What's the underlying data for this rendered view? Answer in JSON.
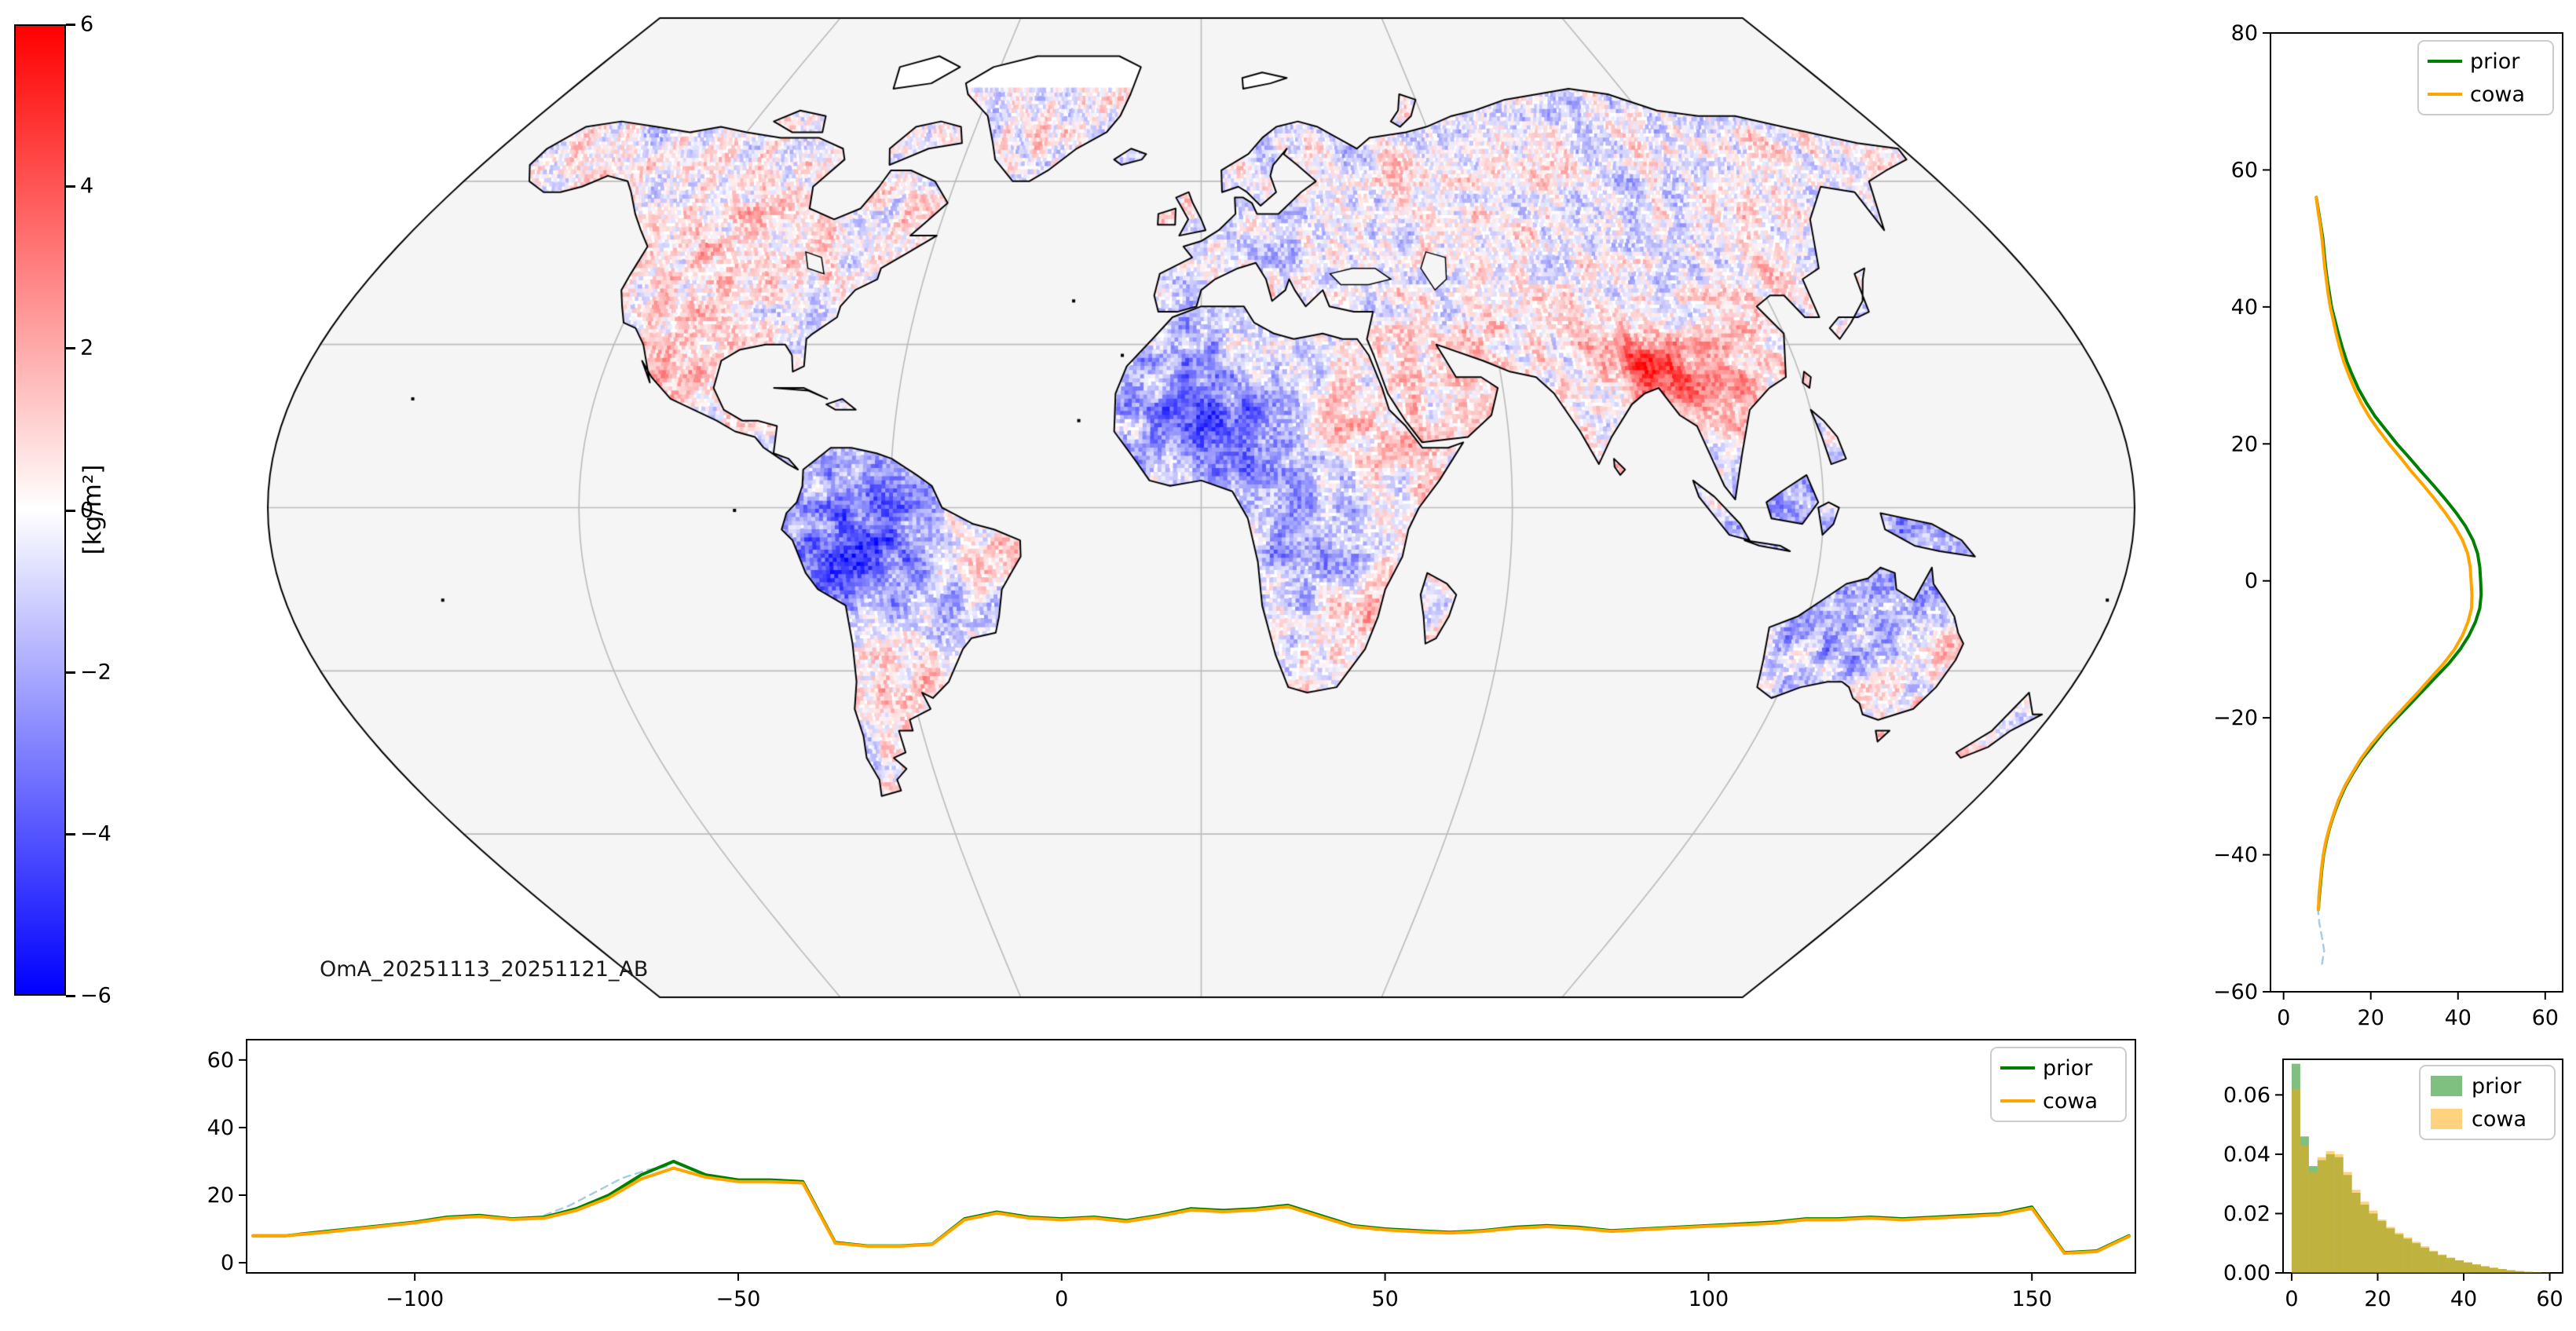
{
  "chart_data": [
    {
      "name": "global_map",
      "type": "heatmap",
      "title": "OmA_20251113_20251121_AB",
      "colorbar_label": "[kg/m²]",
      "vmin": -6,
      "vmax": 6,
      "colorbar_ticks": [
        6,
        4,
        2,
        0,
        -2,
        -4,
        -6
      ],
      "cmap": "bwr (blue-white-red)",
      "cmap_colors": [
        "#0000ff",
        "#ffffff",
        "#ff0000"
      ],
      "projection": "global pseudo-cylindrical (Winkel-tripel-like), land-only anomaly field, ocean masked light gray",
      "notable_features": [
        "strong negative (blue) anomalies over the Amazon basin, western Sahara/Sahel, Congo basin, Indonesia and northern Australia",
        "strong positive (red) anomalies over northeast India/Bangladesh/Myanmar and parts of southeast Asia and eastern China",
        "weak mixed mottled anomalies over North America, Europe, Siberia, southern Africa and eastern South America"
      ]
    },
    {
      "name": "zonal_profile",
      "type": "line",
      "orientation": "value-vs-latitude (vertical profile, right panel)",
      "xlim": [
        -3,
        64
      ],
      "ylim": [
        -60,
        80
      ],
      "xticks": [
        0,
        20,
        40,
        60
      ],
      "yticks": [
        80,
        60,
        40,
        20,
        0,
        -20,
        -40,
        -60
      ],
      "legend_loc": "upper right",
      "latitude": [
        56,
        54,
        52,
        50,
        48,
        46,
        44,
        42,
        40,
        38,
        36,
        34,
        32,
        30,
        28,
        26,
        24,
        22,
        20,
        18,
        16,
        14,
        12,
        10,
        8,
        6,
        4,
        2,
        0,
        -2,
        -4,
        -6,
        -8,
        -10,
        -12,
        -14,
        -16,
        -18,
        -20,
        -22,
        -24,
        -26,
        -28,
        -30,
        -32,
        -34,
        -36,
        -38,
        -40,
        -42,
        -44,
        -46,
        -48
      ],
      "series": [
        {
          "name": "prior",
          "color": "#008000",
          "values": [
            7.5,
            8,
            8.5,
            9,
            9.3,
            9.6,
            10,
            10.5,
            11,
            11.8,
            12.6,
            13.5,
            14.5,
            15.8,
            17.2,
            19,
            21,
            23.5,
            26,
            28.8,
            31.5,
            34.3,
            37,
            39.5,
            41.7,
            43.4,
            44.5,
            45,
            45.2,
            45.3,
            45,
            44,
            42.5,
            40.5,
            38,
            35,
            32,
            29,
            26,
            23,
            20.5,
            18,
            16,
            14.2,
            12.8,
            11.6,
            10.6,
            9.8,
            9.2,
            8.8,
            8.5,
            8.2,
            8
          ]
        },
        {
          "name": "cowa",
          "color": "#FFA500",
          "values": [
            7.5,
            7.9,
            8.4,
            8.8,
            9.1,
            9.4,
            9.8,
            10.2,
            10.7,
            11.4,
            12.1,
            12.9,
            13.8,
            15,
            16.3,
            17.8,
            19.6,
            21.8,
            24.2,
            26.8,
            29.3,
            32,
            34.6,
            37,
            39.2,
            41,
            42.2,
            42.8,
            43,
            43.2,
            43.1,
            42.3,
            41,
            39.2,
            36.8,
            34,
            31.2,
            28.3,
            25.4,
            22.6,
            20,
            17.7,
            15.8,
            14,
            12.6,
            11.5,
            10.5,
            9.7,
            9.1,
            8.7,
            8.4,
            8.1,
            8
          ]
        }
      ],
      "extra_dashed": {
        "color": "#a6cee3",
        "latitude": [
          -44,
          -46,
          -48,
          -50,
          -52,
          -54,
          -56
        ],
        "values": [
          8.4,
          8.1,
          7.9,
          8.2,
          8.8,
          9.3,
          8.8
        ]
      }
    },
    {
      "name": "longitude_mean",
      "type": "line",
      "orientation": "value-vs-longitude (bottom panel)",
      "xlim": [
        -126,
        166
      ],
      "ylim": [
        -3,
        66
      ],
      "xticks": [
        -100,
        -50,
        0,
        50,
        100,
        150
      ],
      "yticks": [
        0,
        20,
        40,
        60
      ],
      "legend_loc": "upper right",
      "x": [
        -125,
        -120,
        -115,
        -110,
        -105,
        -100,
        -95,
        -90,
        -85,
        -80,
        -75,
        -70,
        -65,
        -60,
        -55,
        -50,
        -45,
        -40,
        -35,
        -30,
        -25,
        -20,
        -15,
        -10,
        -5,
        0,
        5,
        10,
        15,
        20,
        25,
        30,
        35,
        40,
        45,
        50,
        55,
        60,
        65,
        70,
        75,
        80,
        85,
        90,
        95,
        100,
        105,
        110,
        115,
        120,
        125,
        130,
        135,
        140,
        145,
        150,
        155,
        160,
        165
      ],
      "series": [
        {
          "name": "prior",
          "color": "#008000",
          "values": [
            8,
            8,
            9,
            10,
            11,
            12,
            13.5,
            14,
            13,
            13.5,
            16,
            20,
            26,
            30,
            26,
            24.5,
            24.5,
            24,
            6,
            5,
            5,
            5.5,
            13,
            15,
            13.5,
            13,
            13.5,
            12.5,
            14,
            16,
            15.5,
            16,
            17,
            14,
            11,
            10,
            9.5,
            9,
            9.5,
            10.5,
            11,
            10.5,
            9.5,
            10,
            10.5,
            11,
            11.5,
            12,
            13,
            13,
            13.5,
            13,
            13.5,
            14,
            14.5,
            16.5,
            3,
            3.5,
            8
          ]
        },
        {
          "name": "cowa",
          "color": "#FFA500",
          "values": [
            8,
            8,
            8.8,
            9.8,
            10.8,
            11.8,
            13.2,
            13.7,
            12.8,
            13.2,
            15.5,
            19.2,
            24.8,
            28,
            25.3,
            24,
            24,
            23.6,
            5.8,
            4.9,
            4.9,
            5.4,
            12.7,
            14.7,
            13.2,
            12.7,
            13.2,
            12.2,
            13.7,
            15.6,
            15.1,
            15.6,
            16.6,
            13.6,
            10.7,
            9.7,
            9.2,
            8.8,
            9.3,
            10.2,
            10.7,
            10.2,
            9.3,
            9.8,
            10.3,
            10.8,
            11.2,
            11.7,
            12.7,
            12.7,
            13.2,
            12.7,
            13.2,
            13.7,
            14.2,
            16.1,
            2.8,
            3.3,
            7.8
          ]
        }
      ],
      "extra_dashed": {
        "color": "#a6cee3",
        "x": [
          -80,
          -76,
          -72,
          -68,
          -64,
          -61
        ],
        "values": [
          14,
          17,
          21,
          25,
          27.5,
          28.5
        ]
      }
    },
    {
      "name": "histogram",
      "type": "histogram",
      "xlim": [
        -2,
        63
      ],
      "ylim": [
        0,
        0.072
      ],
      "xticks": [
        0,
        20,
        40,
        60
      ],
      "yticks": [
        0,
        0.02,
        0.04,
        0.06
      ],
      "legend_loc": "upper right",
      "bin_start": 0,
      "bin_width": 2,
      "series": [
        {
          "name": "prior",
          "color": "#008000",
          "alpha": 0.5,
          "densities": [
            0.0705,
            0.046,
            0.036,
            0.038,
            0.04,
            0.039,
            0.033,
            0.027,
            0.023,
            0.02,
            0.0175,
            0.015,
            0.013,
            0.0115,
            0.01,
            0.0085,
            0.0072,
            0.006,
            0.005,
            0.0042,
            0.0035,
            0.0028,
            0.0022,
            0.0017,
            0.0013,
            0.0009,
            0.0006,
            0.0004,
            0.0002,
            0.0001
          ]
        },
        {
          "name": "cowa",
          "color": "#FFA500",
          "alpha": 0.5,
          "densities": [
            0.062,
            0.043,
            0.034,
            0.039,
            0.041,
            0.04,
            0.034,
            0.028,
            0.024,
            0.021,
            0.018,
            0.0155,
            0.0135,
            0.012,
            0.0105,
            0.009,
            0.0075,
            0.0062,
            0.0052,
            0.0043,
            0.0036,
            0.0029,
            0.0023,
            0.0018,
            0.0013,
            0.0009,
            0.0006,
            0.0004,
            0.0002,
            0.0001
          ]
        }
      ]
    }
  ],
  "legend": {
    "entries": [
      {
        "label": "prior",
        "color": "#008000"
      },
      {
        "label": "cowa",
        "color": "#FFA500"
      }
    ]
  }
}
